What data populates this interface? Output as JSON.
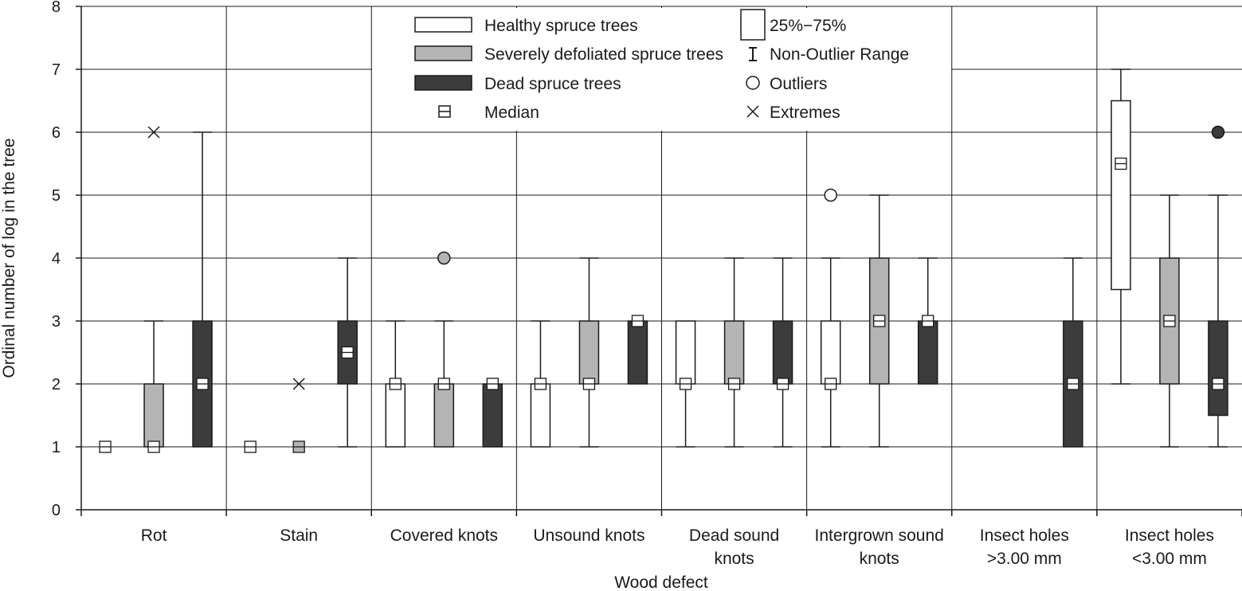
{
  "chart_data": {
    "type": "boxplot",
    "title": "",
    "xlabel": "Wood defect",
    "ylabel": "Ordinal number of log in the tree",
    "ylim": [
      0,
      8
    ],
    "yticks": [
      0,
      1,
      2,
      3,
      4,
      5,
      6,
      7,
      8
    ],
    "grid": true,
    "legend_position": "top-center",
    "categories": [
      {
        "label": [
          "Rot"
        ]
      },
      {
        "label": [
          "Stain"
        ]
      },
      {
        "label": [
          "Covered knots"
        ]
      },
      {
        "label": [
          "Unsound knots"
        ]
      },
      {
        "label": [
          "Dead sound",
          "knots"
        ]
      },
      {
        "label": [
          "Intergrown sound",
          "knots"
        ]
      },
      {
        "label": [
          "Insect holes",
          ">3.00 mm"
        ]
      },
      {
        "label": [
          "Insect holes",
          "<3.00 mm"
        ]
      }
    ],
    "series": [
      {
        "name": "Healthy spruce trees",
        "color": "#ffffff",
        "boxes": [
          {
            "median": 1
          },
          {
            "median": 1
          },
          {
            "median": 2,
            "q1": 1,
            "q3": 2,
            "whisker_low": 1,
            "whisker_high": 3
          },
          {
            "median": 2,
            "q1": 1,
            "q3": 2,
            "whisker_low": 1,
            "whisker_high": 3
          },
          {
            "median": 2,
            "q1": 2,
            "q3": 3,
            "whisker_low": 1,
            "whisker_high": 3
          },
          {
            "median": 2,
            "q1": 2,
            "q3": 3,
            "whisker_low": 1,
            "whisker_high": 4,
            "outliers": [
              5
            ]
          },
          null,
          {
            "median": 5.5,
            "q1": 3.5,
            "q3": 6.5,
            "whisker_low": 2,
            "whisker_high": 7
          }
        ]
      },
      {
        "name": "Severely defoliated spruce trees",
        "color": "#b4b4b4",
        "boxes": [
          {
            "median": 1,
            "q1": 1,
            "q3": 2,
            "whisker_low": 1,
            "whisker_high": 3,
            "extremes": [
              6
            ]
          },
          {
            "median": 1,
            "extremes": [
              2
            ]
          },
          {
            "median": 2,
            "q1": 1,
            "q3": 2,
            "whisker_low": 1,
            "whisker_high": 3,
            "outliers": [
              4
            ]
          },
          {
            "median": 2,
            "q1": 2,
            "q3": 3,
            "whisker_low": 1,
            "whisker_high": 4
          },
          {
            "median": 2,
            "q1": 2,
            "q3": 3,
            "whisker_low": 1,
            "whisker_high": 4
          },
          {
            "median": 3,
            "q1": 2,
            "q3": 4,
            "whisker_low": 1,
            "whisker_high": 5
          },
          null,
          {
            "median": 3,
            "q1": 2,
            "q3": 4,
            "whisker_low": 1,
            "whisker_high": 5
          }
        ]
      },
      {
        "name": "Dead spruce trees",
        "color": "#3c3c3c",
        "boxes": [
          {
            "median": 2,
            "q1": 1,
            "q3": 3,
            "whisker_low": 1,
            "whisker_high": 6
          },
          {
            "median": 2.5,
            "q1": 2,
            "q3": 3,
            "whisker_low": 1,
            "whisker_high": 4
          },
          {
            "median": 2,
            "q1": 1,
            "q3": 2,
            "whisker_low": 1,
            "whisker_high": 2
          },
          {
            "median": 3,
            "q1": 2,
            "q3": 3,
            "whisker_low": 2,
            "whisker_high": 3
          },
          {
            "median": 2,
            "q1": 2,
            "q3": 3,
            "whisker_low": 1,
            "whisker_high": 4
          },
          {
            "median": 3,
            "q1": 2,
            "q3": 3,
            "whisker_low": 2,
            "whisker_high": 4
          },
          {
            "median": 2,
            "q1": 1,
            "q3": 3,
            "whisker_low": 1,
            "whisker_high": 4
          },
          {
            "median": 2,
            "q1": 1.5,
            "q3": 3,
            "whisker_low": 1,
            "whisker_high": 5,
            "outliers": [
              6
            ]
          }
        ]
      }
    ],
    "legend": {
      "series_entries": [
        "Healthy spruce trees",
        "Severely defoliated spruce trees",
        "Dead spruce trees"
      ],
      "median_label": "Median",
      "box_label": "25%−75%",
      "range_label": "Non-Outlier Range",
      "outliers_label": "Outliers",
      "extremes_label": "Extremes"
    }
  }
}
